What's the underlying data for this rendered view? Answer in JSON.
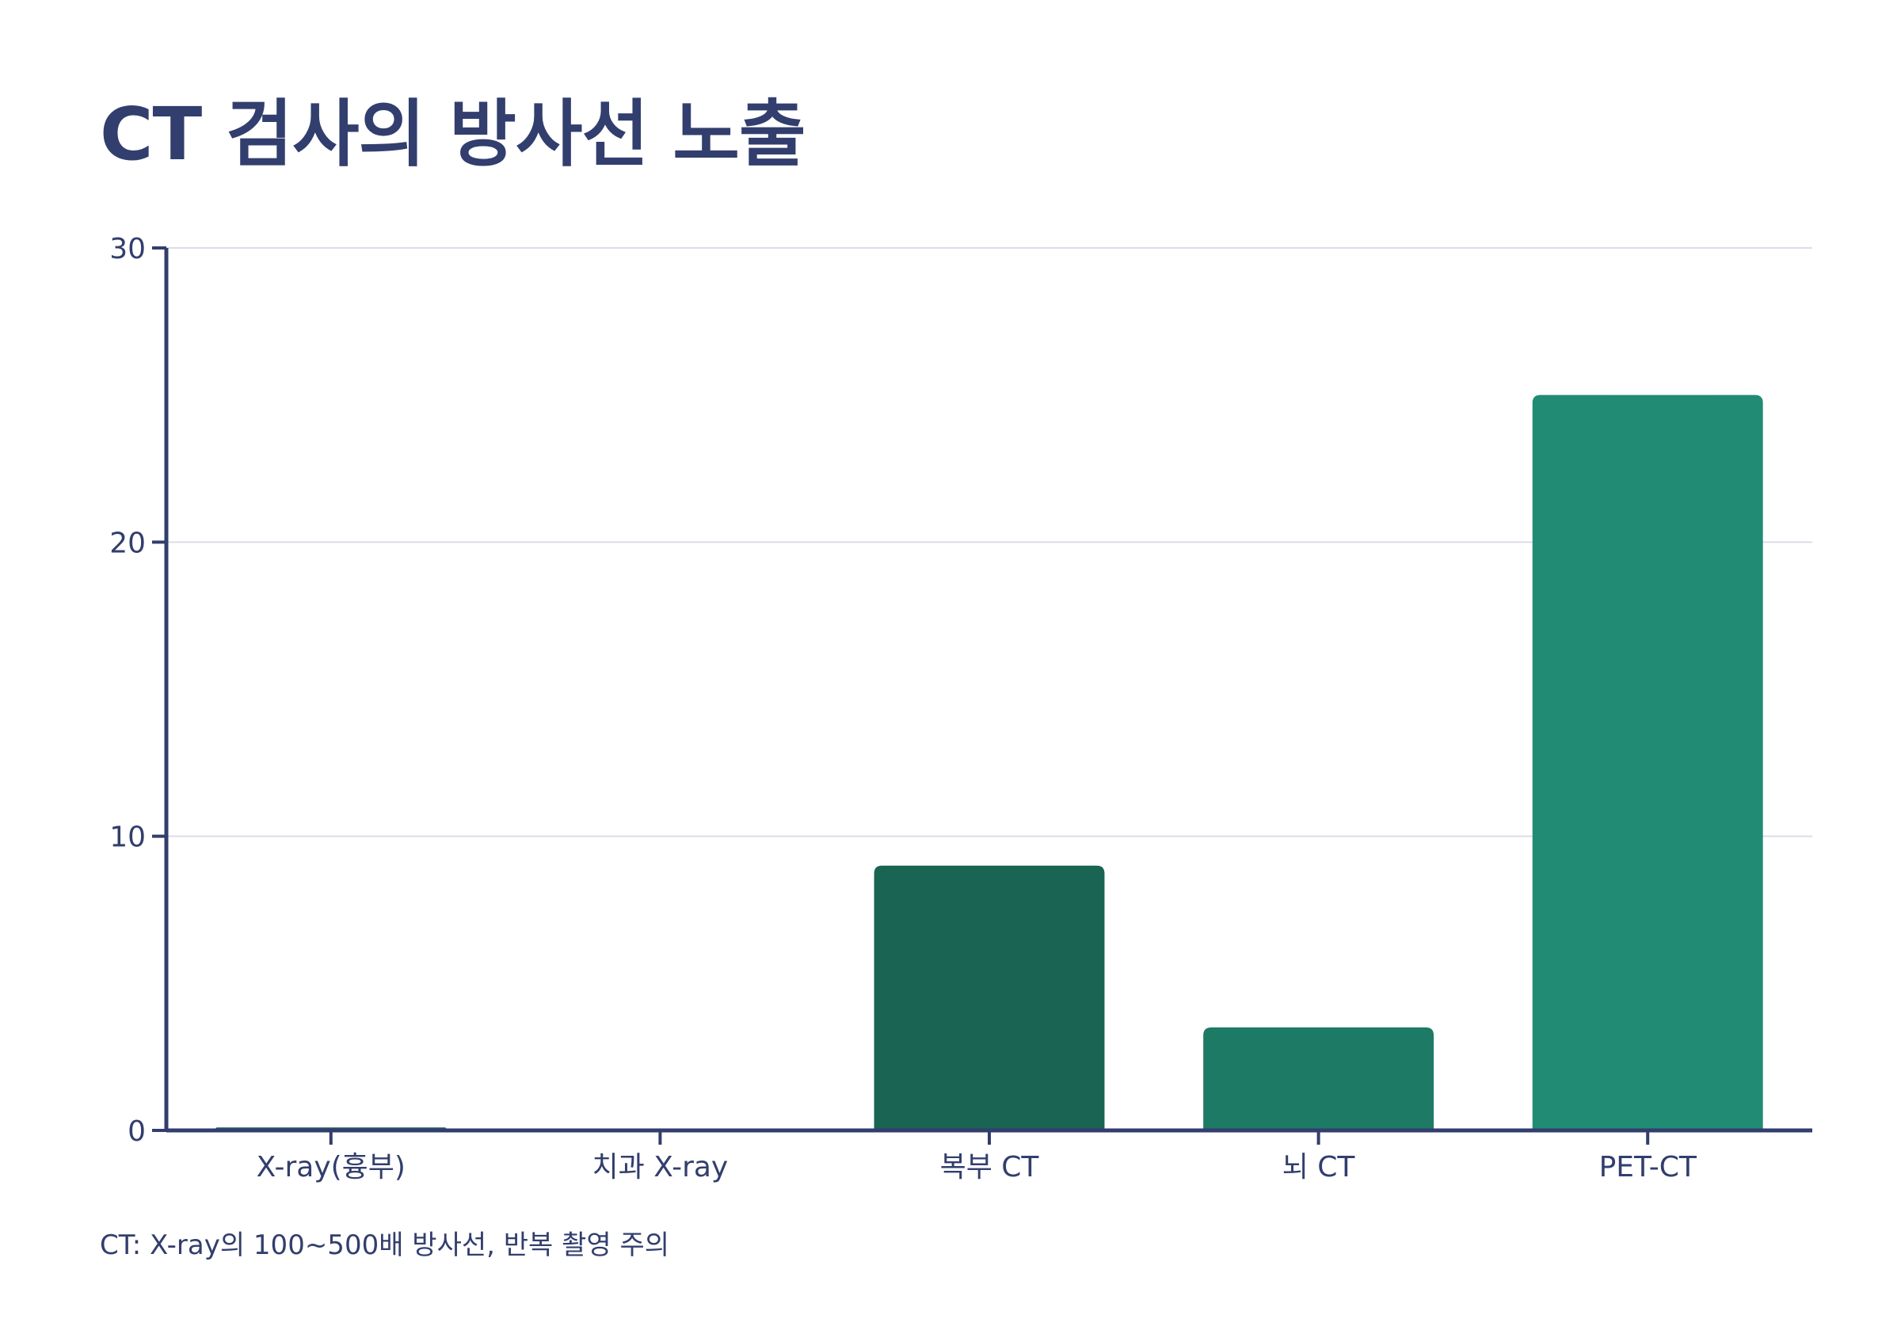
{
  "chart_data": {
    "type": "bar",
    "title": "CT 검사의 방사선 노출",
    "xlabel": "",
    "ylabel": "",
    "categories": [
      "X-ray(흉부)",
      "치과 X-ray",
      "복부 CT",
      "뇌 CT",
      "PET-CT"
    ],
    "values": [
      0.1,
      0.005,
      9,
      3.5,
      25
    ],
    "bar_colors": [
      "#1a6454",
      "#1a6454",
      "#1a6454",
      "#1c7a65",
      "#218b73"
    ],
    "ylim": [
      0,
      30
    ],
    "yticks": [
      0,
      10,
      20,
      30
    ],
    "grid": true,
    "legend": "none",
    "note": "CT: X-ray의 100~500배 방사선, 반복 촬영 주의"
  },
  "colors": {
    "text": "#323e6d",
    "axis": "#323e6d",
    "grid": "#dcdce6"
  }
}
